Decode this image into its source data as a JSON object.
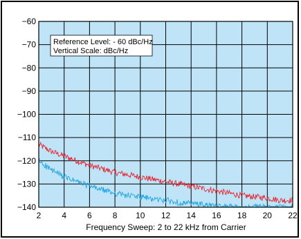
{
  "chart_data": {
    "type": "line",
    "xlabel": "Frequency Sweep: 2 to 22 kHz from Carrier",
    "ylabel": "",
    "xlim": [
      2,
      22
    ],
    "ylim": [
      -140,
      -60
    ],
    "x_ticks": [
      "2",
      "4",
      "6",
      "8",
      "10",
      "12",
      "14",
      "16",
      "18",
      "20",
      "22"
    ],
    "y_ticks": [
      "−60",
      "−70",
      "−80",
      "−90",
      "−100",
      "−110",
      "−120",
      "−130",
      "−140"
    ],
    "grid": true,
    "annotation": [
      "Reference Level: - 60 dBc/Hz",
      "Vertical Scale: dBc/Hz"
    ],
    "series": [
      {
        "color": "#e8202a",
        "x": [
          2,
          3,
          4,
          5,
          6,
          7,
          8,
          9,
          10,
          11,
          12,
          13,
          14,
          15,
          16,
          17,
          18,
          19,
          20,
          21,
          22
        ],
        "values": [
          -113,
          -116,
          -118,
          -120,
          -122,
          -123.5,
          -125,
          -126,
          -127,
          -128,
          -129,
          -130,
          -131,
          -132,
          -133,
          -134,
          -135,
          -135.5,
          -136,
          -137,
          -137
        ]
      },
      {
        "color": "#1fa3e0",
        "x": [
          2,
          3,
          4,
          5,
          6,
          7,
          8,
          9,
          10,
          11,
          12,
          13,
          14,
          15,
          16,
          17,
          18,
          19,
          20,
          21,
          22
        ],
        "values": [
          -120,
          -124,
          -127,
          -129,
          -131,
          -132.5,
          -134,
          -135,
          -135.5,
          -136.5,
          -137,
          -138,
          -138.5,
          -139,
          -139.5,
          -139.8,
          -140,
          -140,
          -140,
          -140,
          -140
        ]
      }
    ],
    "plot_background": "#bfe4f7"
  }
}
